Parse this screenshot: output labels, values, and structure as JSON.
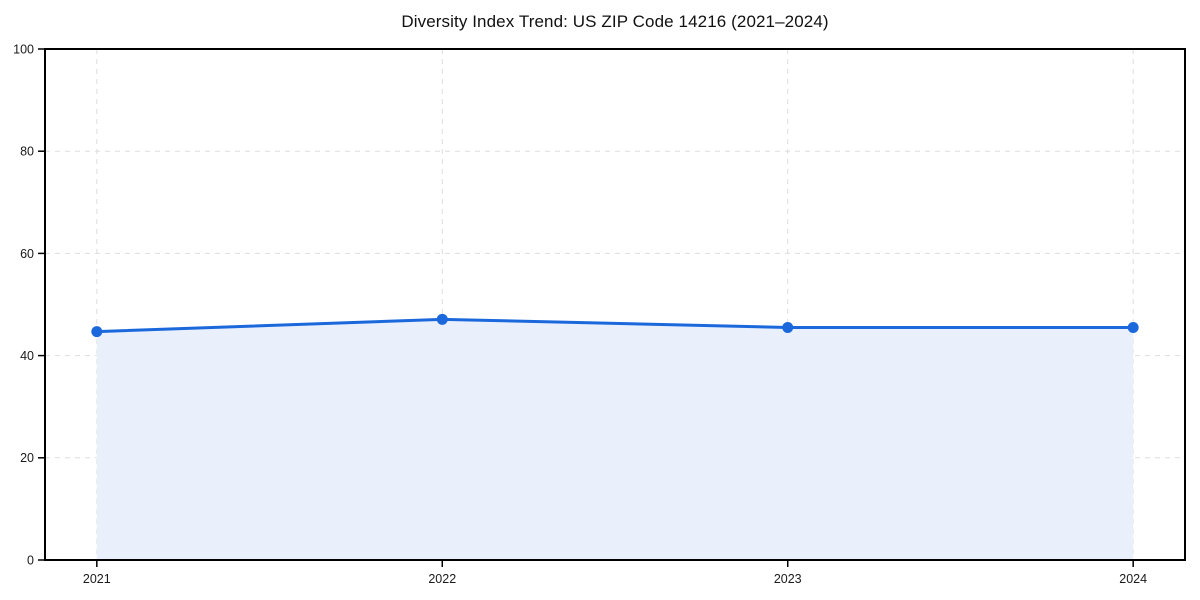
{
  "chart_data": {
    "type": "area",
    "title": "Diversity Index Trend: US ZIP Code 14216 (2021–2024)",
    "categories": [
      "2021",
      "2022",
      "2023",
      "2024"
    ],
    "series": [
      {
        "name": "Diversity Index",
        "values": [
          44.7,
          47.1,
          45.5,
          45.5
        ]
      }
    ],
    "ylim": [
      0,
      100
    ],
    "yticks": [
      0,
      20,
      40,
      60,
      80,
      100
    ],
    "grid": "dashed",
    "legend": "none",
    "colors": {
      "line": "#1a68db",
      "marker": "#1a68db",
      "fill": "#e9f0fc",
      "gridline": "#dddddd",
      "axis": "#000000",
      "tick_label": "#1a1a1a",
      "title": "#111111",
      "background": "#ffffff"
    }
  }
}
